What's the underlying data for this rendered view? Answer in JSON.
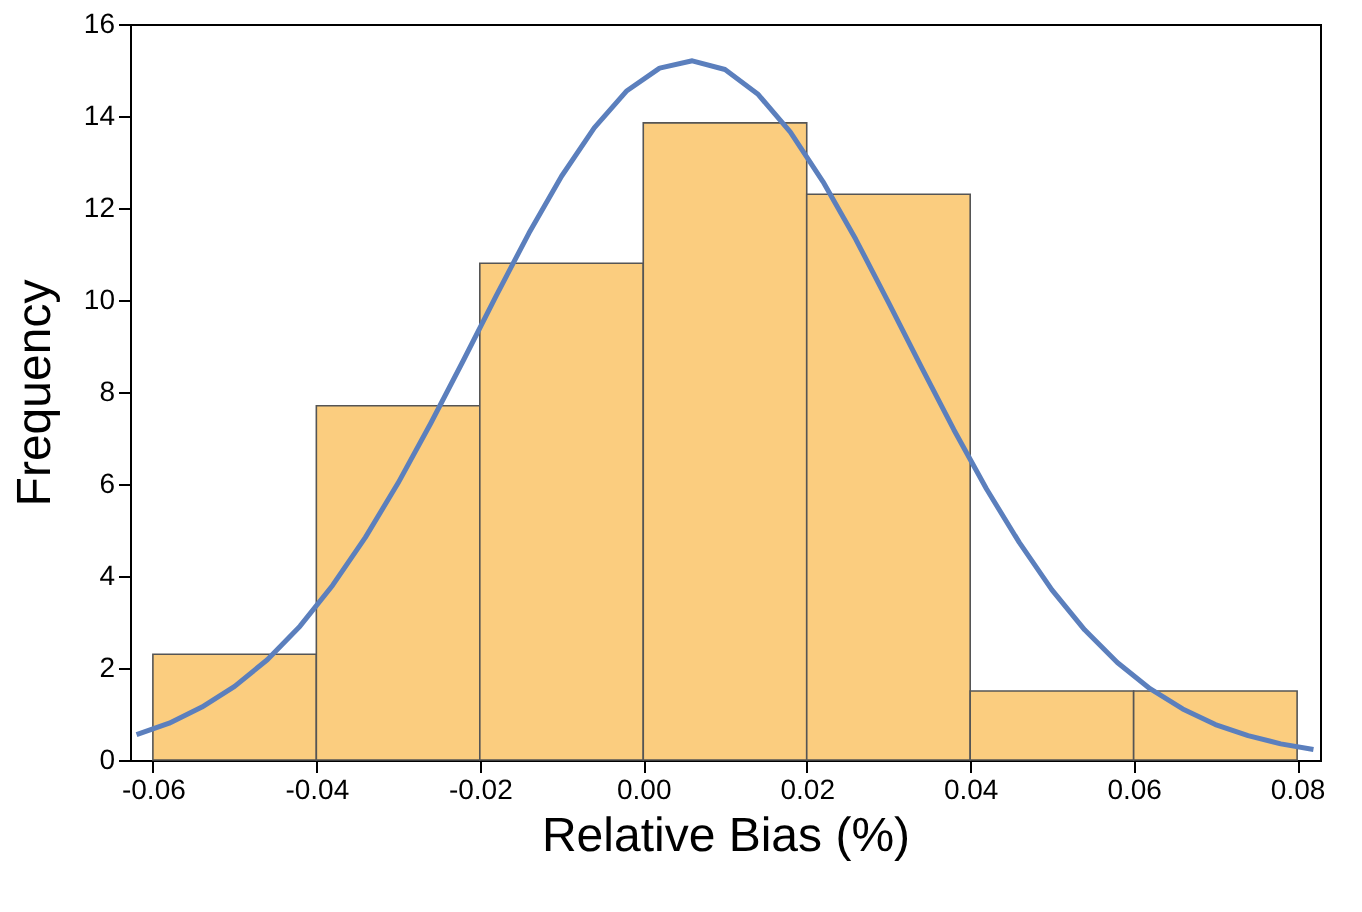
{
  "chart_data": {
    "type": "histogram",
    "xlabel": "Relative Bias (%)",
    "ylabel": "Frequency",
    "bins": [
      -0.06,
      -0.04,
      -0.02,
      0.0,
      0.02,
      0.04,
      0.06,
      0.08
    ],
    "values": [
      2.3,
      7.7,
      10.8,
      13.85,
      12.3,
      1.5,
      1.5
    ],
    "color": "#fbcd7f",
    "series": [
      {
        "type": "line",
        "color": "#5b7fbd",
        "x": [
          -0.062,
          -0.058,
          -0.054,
          -0.05,
          -0.046,
          -0.042,
          -0.038,
          -0.034,
          -0.03,
          -0.026,
          -0.022,
          -0.018,
          -0.014,
          -0.01,
          -0.006,
          -0.002,
          0.002,
          0.006,
          0.01,
          0.014,
          0.018,
          0.022,
          0.026,
          0.03,
          0.034,
          0.038,
          0.042,
          0.046,
          0.05,
          0.054,
          0.058,
          0.062,
          0.066,
          0.07,
          0.074,
          0.078,
          0.082
        ],
        "values": [
          0.55,
          0.8,
          1.15,
          1.6,
          2.18,
          2.91,
          3.8,
          4.84,
          6.02,
          7.32,
          8.69,
          10.09,
          11.45,
          12.69,
          13.74,
          14.55,
          15.04,
          15.2,
          15.01,
          14.48,
          13.65,
          12.57,
          11.32,
          9.95,
          8.55,
          7.18,
          5.89,
          4.73,
          3.7,
          2.83,
          2.12,
          1.55,
          1.11,
          0.77,
          0.53,
          0.35,
          0.23
        ]
      }
    ],
    "xlim": [
      -0.0628,
      0.0828
    ],
    "ylim": [
      0,
      16
    ],
    "xticks": [
      {
        "value": -0.06,
        "label": "-0.06"
      },
      {
        "value": -0.04,
        "label": "-0.04"
      },
      {
        "value": -0.02,
        "label": "-0.02"
      },
      {
        "value": 0,
        "label": "0.00"
      },
      {
        "value": 0.02,
        "label": "0.02"
      },
      {
        "value": 0.04,
        "label": "0.04"
      },
      {
        "value": 0.06,
        "label": "0.06"
      },
      {
        "value": 0.08,
        "label": "0.08"
      }
    ],
    "yticks": [
      0,
      2,
      4,
      6,
      8,
      10,
      12,
      14,
      16
    ],
    "grid": false
  }
}
